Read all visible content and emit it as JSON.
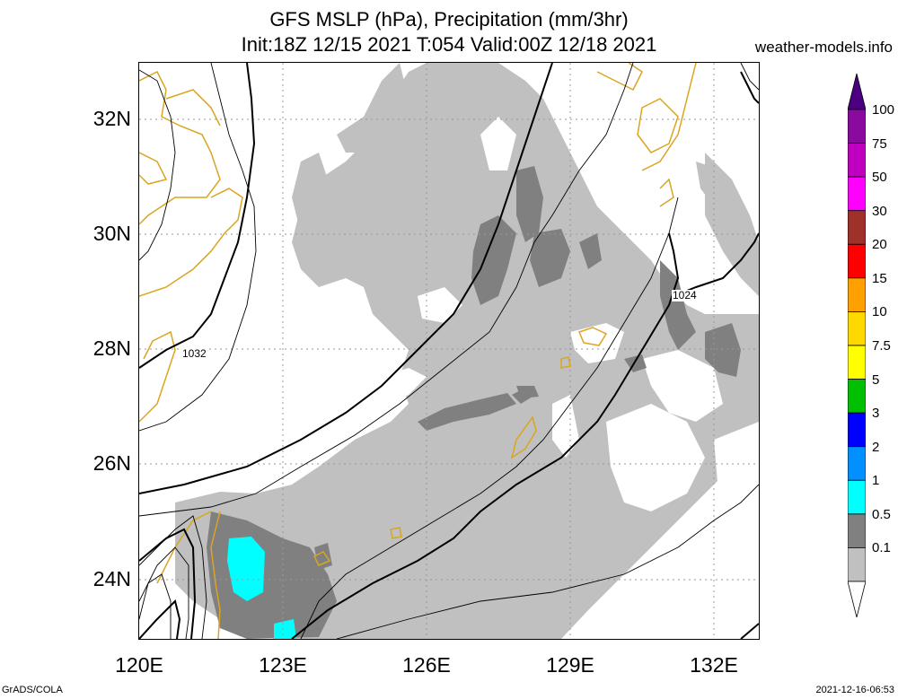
{
  "title": {
    "line1": "GFS MSLP (hPa), Precipitation (mm/3hr)",
    "line2": "Init:18Z 12/15 2021 T:054 Valid:00Z 12/18 2021"
  },
  "site": "weather-models.info",
  "axes": {
    "lat_labels": [
      "32N",
      "30N",
      "28N",
      "26N",
      "24N"
    ],
    "lon_labels": [
      "120E",
      "123E",
      "126E",
      "129E",
      "132E"
    ]
  },
  "contour_labels": [
    "1032",
    "1024"
  ],
  "colorbar": {
    "labels": [
      "100",
      "75",
      "50",
      "30",
      "20",
      "15",
      "10",
      "7.5",
      "5",
      "3",
      "2",
      "1",
      "0.5",
      "0.1"
    ],
    "colors": [
      "#4b0082",
      "#8a0aa0",
      "#c000c0",
      "#ff00ff",
      "#a0302a",
      "#ff0000",
      "#ffa000",
      "#ffd800",
      "#ffff00",
      "#00c000",
      "#0000ff",
      "#0090ff",
      "#00ffff",
      "#808080",
      "#c0c0c0",
      "#ffffff"
    ]
  },
  "footer": {
    "left": "GrADS/COLA",
    "right": "2021-12-16-06:53"
  }
}
